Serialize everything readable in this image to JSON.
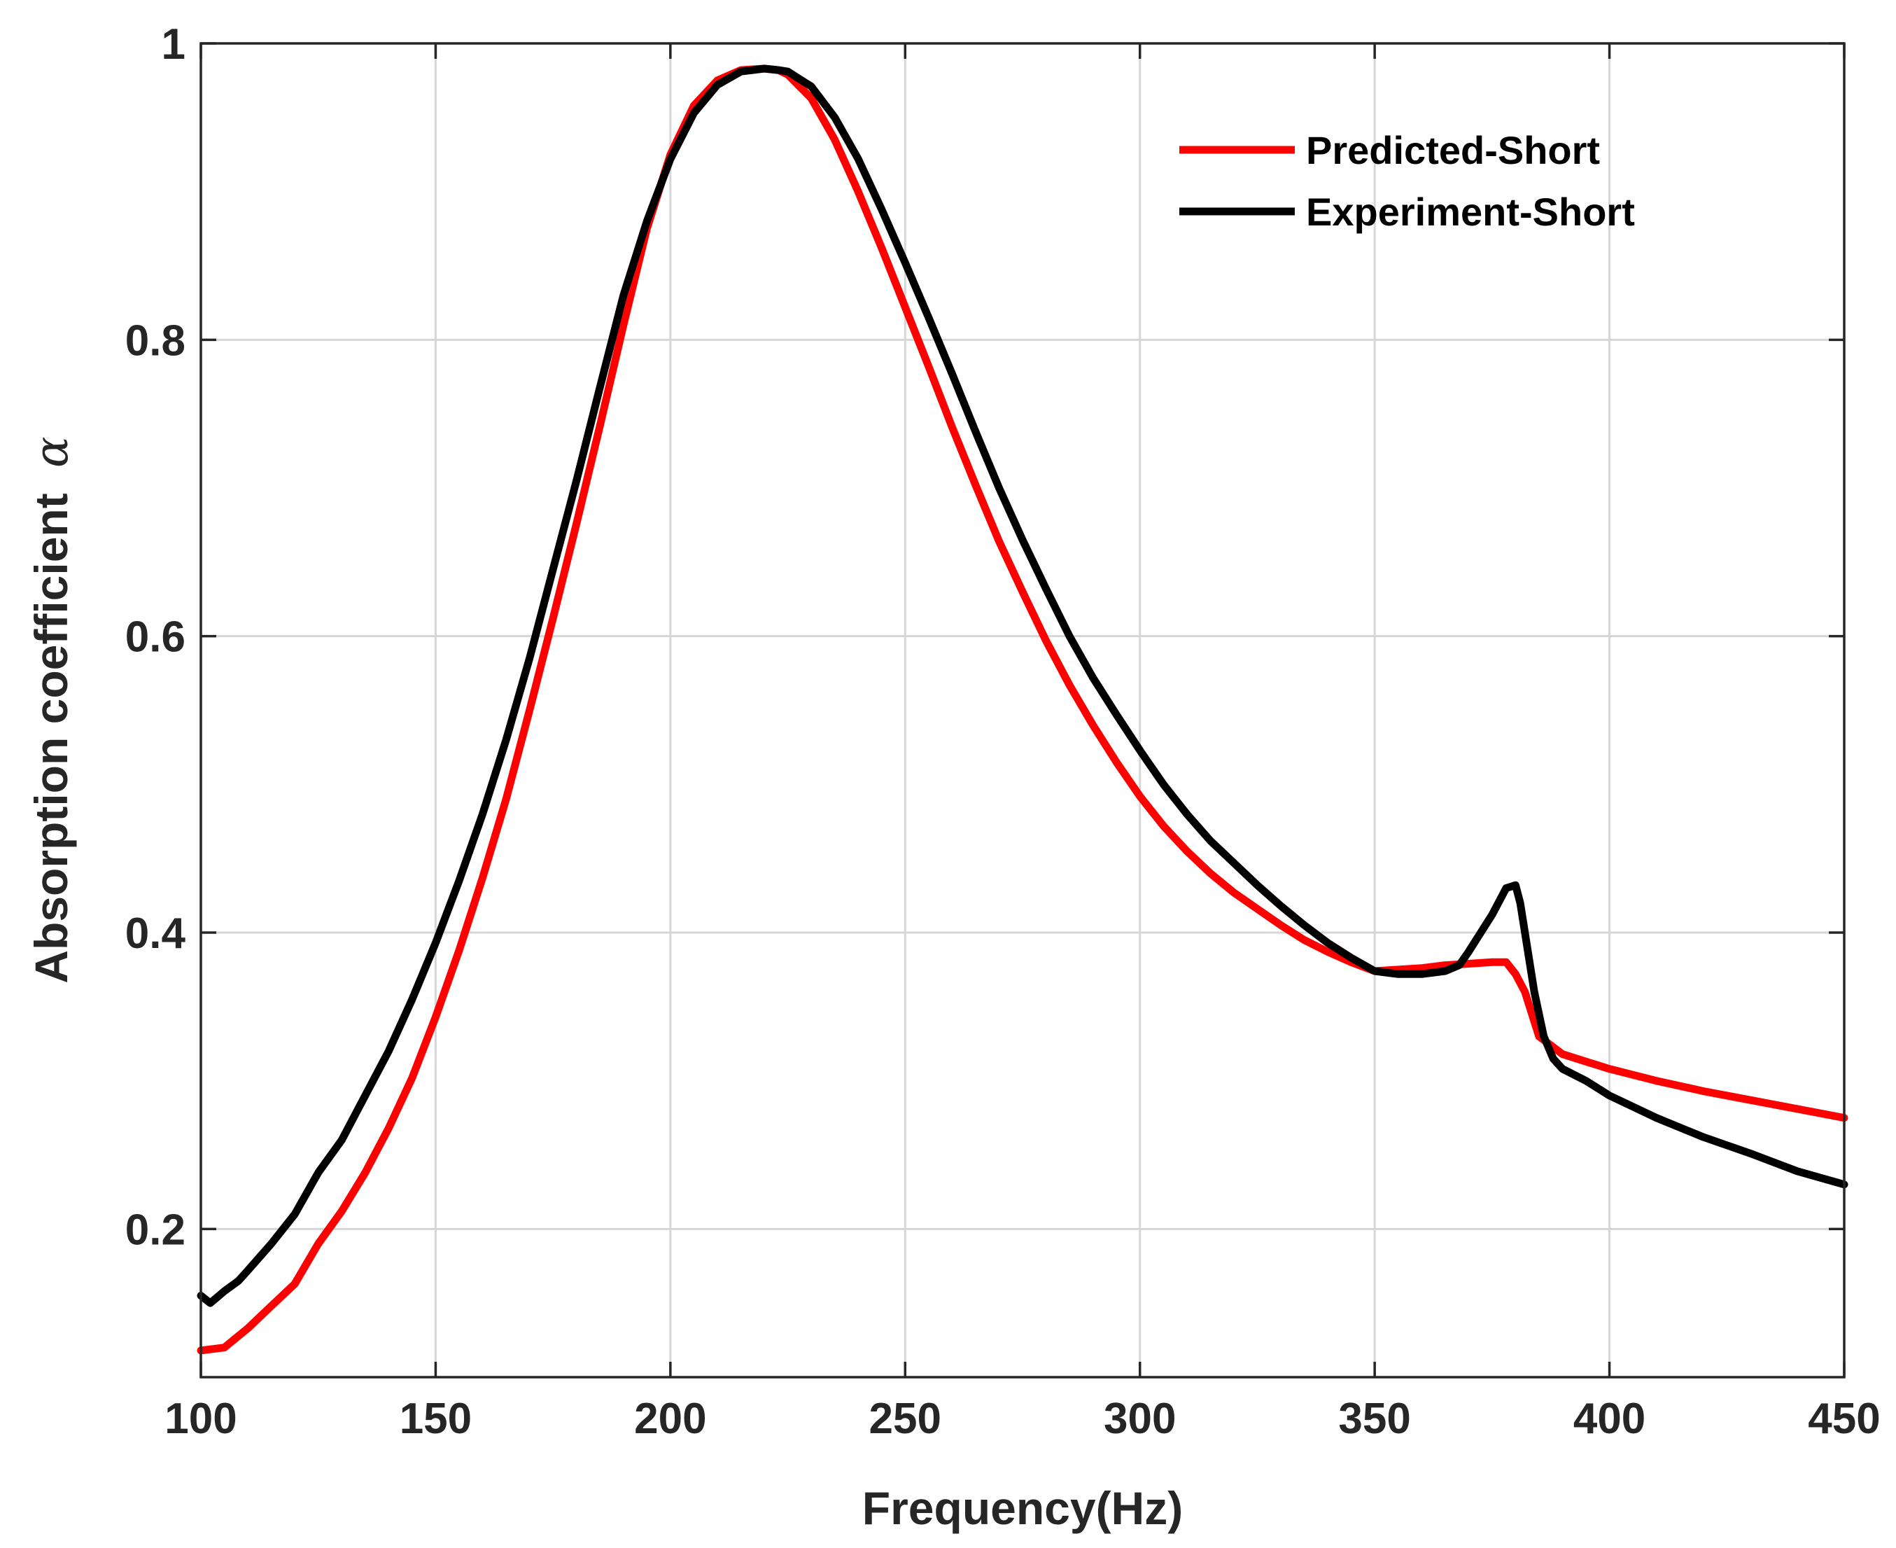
{
  "chart_data": {
    "type": "line",
    "title": "",
    "xlabel": "Frequency(Hz)",
    "ylabel": "Absorption coefficient",
    "ylabel_symbol": "α",
    "xlim": [
      100,
      450
    ],
    "ylim": [
      0.1,
      1.0
    ],
    "xticks": [
      100,
      150,
      200,
      250,
      300,
      350,
      400,
      450
    ],
    "yticks": [
      0.2,
      0.4,
      0.6,
      0.8,
      1.0
    ],
    "xtick_labels": [
      "100",
      "150",
      "200",
      "250",
      "300",
      "350",
      "400",
      "450"
    ],
    "ytick_labels": [
      "0.2",
      "0.4",
      "0.6",
      "0.8",
      "1"
    ],
    "grid": true,
    "legend_position": "top-right",
    "series": [
      {
        "name": "Predicted-Short",
        "color": "#ff0000",
        "x": [
          100,
          105,
          110,
          115,
          120,
          125,
          130,
          135,
          140,
          145,
          150,
          155,
          160,
          165,
          170,
          175,
          180,
          185,
          190,
          195,
          200,
          205,
          210,
          215,
          220,
          223,
          225,
          230,
          235,
          240,
          245,
          250,
          255,
          260,
          265,
          270,
          275,
          280,
          285,
          290,
          295,
          300,
          305,
          310,
          315,
          320,
          325,
          330,
          335,
          340,
          345,
          350,
          355,
          360,
          365,
          370,
          375,
          378,
          380,
          382,
          385,
          390,
          395,
          400,
          410,
          420,
          430,
          440,
          450
        ],
        "y": [
          0.118,
          0.12,
          0.133,
          0.148,
          0.163,
          0.19,
          0.212,
          0.238,
          0.268,
          0.302,
          0.343,
          0.388,
          0.437,
          0.49,
          0.55,
          0.612,
          0.676,
          0.742,
          0.81,
          0.875,
          0.925,
          0.958,
          0.975,
          0.982,
          0.983,
          0.982,
          0.979,
          0.963,
          0.935,
          0.9,
          0.862,
          0.822,
          0.782,
          0.741,
          0.702,
          0.664,
          0.63,
          0.597,
          0.567,
          0.54,
          0.515,
          0.492,
          0.472,
          0.455,
          0.44,
          0.427,
          0.416,
          0.405,
          0.395,
          0.387,
          0.38,
          0.374,
          0.375,
          0.376,
          0.378,
          0.379,
          0.38,
          0.38,
          0.372,
          0.36,
          0.33,
          0.318,
          0.313,
          0.308,
          0.3,
          0.293,
          0.287,
          0.281,
          0.275
        ]
      },
      {
        "name": "Experiment-Short",
        "color": "#000000",
        "x": [
          100,
          102,
          105,
          108,
          110,
          115,
          120,
          125,
          130,
          135,
          140,
          145,
          150,
          155,
          160,
          165,
          170,
          175,
          180,
          185,
          190,
          195,
          200,
          205,
          210,
          215,
          220,
          223,
          225,
          230,
          235,
          240,
          245,
          250,
          255,
          260,
          265,
          270,
          275,
          280,
          285,
          290,
          295,
          300,
          305,
          310,
          315,
          320,
          325,
          330,
          335,
          340,
          345,
          350,
          355,
          360,
          365,
          368,
          370,
          372,
          375,
          378,
          380,
          381,
          382,
          384,
          386,
          388,
          390,
          395,
          400,
          410,
          420,
          430,
          440,
          450
        ],
        "y": [
          0.155,
          0.15,
          0.158,
          0.165,
          0.172,
          0.19,
          0.21,
          0.238,
          0.26,
          0.29,
          0.32,
          0.355,
          0.393,
          0.435,
          0.48,
          0.53,
          0.585,
          0.645,
          0.705,
          0.768,
          0.83,
          0.88,
          0.922,
          0.953,
          0.972,
          0.981,
          0.983,
          0.982,
          0.981,
          0.971,
          0.95,
          0.922,
          0.888,
          0.852,
          0.815,
          0.777,
          0.738,
          0.7,
          0.665,
          0.632,
          0.6,
          0.572,
          0.547,
          0.523,
          0.5,
          0.48,
          0.462,
          0.447,
          0.432,
          0.418,
          0.405,
          0.393,
          0.383,
          0.374,
          0.372,
          0.372,
          0.374,
          0.378,
          0.387,
          0.397,
          0.412,
          0.43,
          0.432,
          0.42,
          0.4,
          0.36,
          0.33,
          0.315,
          0.308,
          0.3,
          0.29,
          0.275,
          0.262,
          0.251,
          0.239,
          0.23
        ]
      }
    ]
  }
}
